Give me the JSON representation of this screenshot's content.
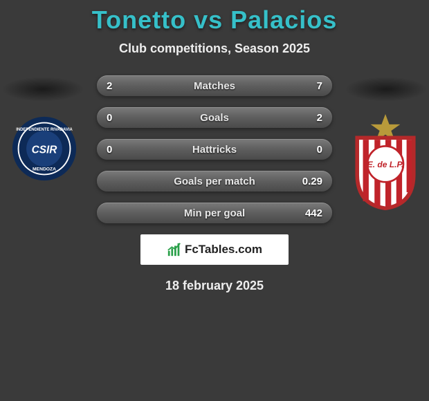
{
  "header": {
    "title_left": "Tonetto",
    "title_vs": "vs",
    "title_right": "Palacios",
    "title_color": "#36c0c9",
    "subtitle": "Club competitions, Season 2025"
  },
  "bars": [
    {
      "label": "Matches",
      "left": "2",
      "right": "7"
    },
    {
      "label": "Goals",
      "left": "0",
      "right": "2"
    },
    {
      "label": "Hattricks",
      "left": "0",
      "right": "0"
    },
    {
      "label": "Goals per match",
      "left": "",
      "right": "0.29"
    },
    {
      "label": "Min per goal",
      "left": "",
      "right": "442"
    }
  ],
  "crests": {
    "left": {
      "name": "Independiente Rivadavia Mendoza",
      "ring_outer": "#0d2a57",
      "ring_inner": "#ffffff",
      "center_bg": "#1a3f7a",
      "initials": "CSIR",
      "initials_color": "#ffffff"
    },
    "right": {
      "name": "Estudiantes de La Plata",
      "star_color": "#b89a3a",
      "shield_border": "#b5292a",
      "shield_bg": "#ffffff",
      "stripe_color": "#c0232a",
      "disc_bg": "#ffffff",
      "disc_border": "#c0232a",
      "text": "E. de L.P.",
      "text_color": "#c0232a"
    }
  },
  "watermark": {
    "text": "FcTables.com",
    "icon_color": "#2aa04a"
  },
  "date": "18 february 2025",
  "colors": {
    "page_bg": "#3a3a3a",
    "bar_text": "#ffffff"
  }
}
